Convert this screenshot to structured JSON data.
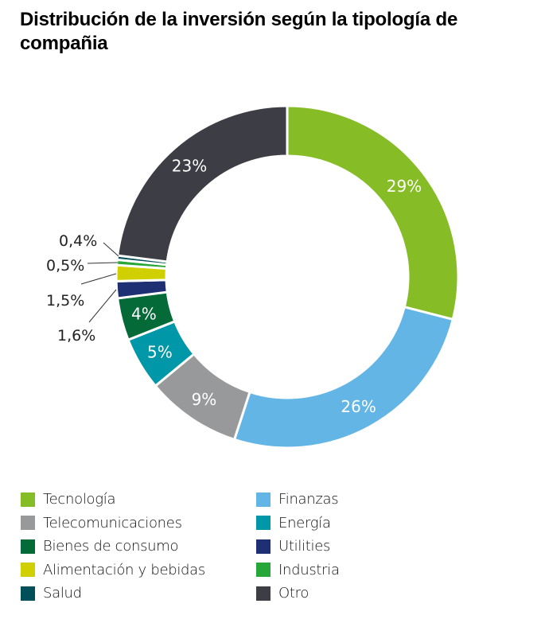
{
  "title": "Distribución de la inversión según la tipología de compañia",
  "chart_data": {
    "type": "pie",
    "variant": "donut",
    "title": "Distribución de la inversión según la tipología de compañia",
    "unit": "%",
    "slices": [
      {
        "name": "Tecnología",
        "value": 29,
        "label": "29%",
        "color": "#86bc25",
        "label_position": "inside"
      },
      {
        "name": "Finanzas",
        "value": 26,
        "label": "26%",
        "color": "#62b5e5",
        "label_position": "inside"
      },
      {
        "name": "Telecomunicaciones",
        "value": 9,
        "label": "9%",
        "color": "#97999b",
        "label_position": "inside"
      },
      {
        "name": "Energía",
        "value": 5,
        "label": "5%",
        "color": "#0097a9",
        "label_position": "inside"
      },
      {
        "name": "Bienes de consumo",
        "value": 4,
        "label": "4%",
        "color": "#046a38",
        "label_position": "inside"
      },
      {
        "name": "Utilities",
        "value": 1.6,
        "label": "1,6%",
        "color": "#1f2f73",
        "label_position": "outside"
      },
      {
        "name": "Alimentación y bebidas",
        "value": 1.5,
        "label": "1,5%",
        "color": "#d0d000",
        "label_position": "outside"
      },
      {
        "name": "Industria",
        "value": 0.5,
        "label": "0,5%",
        "color": "#26a737",
        "label_position": "outside"
      },
      {
        "name": "Salud",
        "value": 0.4,
        "label": "0,4%",
        "color": "#004f59",
        "label_position": "outside"
      },
      {
        "name": "Otro",
        "value": 23,
        "label": "23%",
        "color": "#3c3d45",
        "label_position": "inside"
      }
    ],
    "start_angle": "top (12 o'clock)",
    "direction": "clockwise",
    "legend": {
      "placement": "bottom",
      "columns": 2,
      "items": [
        {
          "label": "Tecnología",
          "color": "#86bc25"
        },
        {
          "label": "Finanzas",
          "color": "#62b5e5"
        },
        {
          "label": "Telecomunicaciones",
          "color": "#97999b"
        },
        {
          "label": "Energía",
          "color": "#0097a9"
        },
        {
          "label": "Bienes de consumo",
          "color": "#046a38"
        },
        {
          "label": "Utilities",
          "color": "#1f2f73"
        },
        {
          "label": "Alimentación y bebidas",
          "color": "#d0d000"
        },
        {
          "label": "Industria",
          "color": "#26a737"
        },
        {
          "label": "Salud",
          "color": "#004f59"
        },
        {
          "label": "Otro",
          "color": "#3c3d45"
        }
      ]
    }
  }
}
